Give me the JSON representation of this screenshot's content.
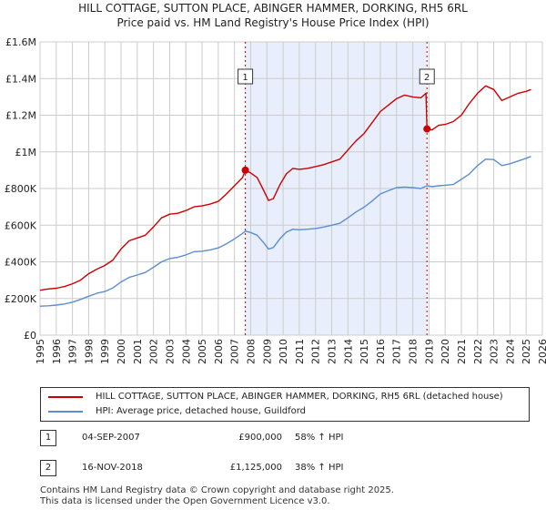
{
  "title_line1": "HILL COTTAGE, SUTTON PLACE, ABINGER HAMMER, DORKING, RH5 6RL",
  "title_line2": "Price paid vs. HM Land Registry's House Price Index (HPI)",
  "chart_data": {
    "type": "line",
    "x_range": [
      1995,
      2026
    ],
    "y_range": [
      0,
      1600000
    ],
    "y_ticks": [
      {
        "value": 0,
        "label": "£0"
      },
      {
        "value": 200000,
        "label": "£200K"
      },
      {
        "value": 400000,
        "label": "£400K"
      },
      {
        "value": 600000,
        "label": "£600K"
      },
      {
        "value": 800000,
        "label": "£800K"
      },
      {
        "value": 1000000,
        "label": "£1M"
      },
      {
        "value": 1200000,
        "label": "£1.2M"
      },
      {
        "value": 1400000,
        "label": "£1.4M"
      },
      {
        "value": 1600000,
        "label": "£1.6M"
      }
    ],
    "x_ticks": [
      "1995",
      "1996",
      "1997",
      "1998",
      "1999",
      "2000",
      "2001",
      "2002",
      "2003",
      "2004",
      "2005",
      "2006",
      "2007",
      "2008",
      "2009",
      "2010",
      "2011",
      "2012",
      "2013",
      "2014",
      "2015",
      "2016",
      "2017",
      "2018",
      "2019",
      "2020",
      "2021",
      "2022",
      "2023",
      "2024",
      "2025",
      "2026"
    ],
    "highlight_region": {
      "from": 2007.67,
      "to": 2018.88
    },
    "series": [
      {
        "name": "HILL COTTAGE, SUTTON PLACE, ABINGER HAMMER, DORKING, RH5 6RL (detached house)",
        "color": "#cc0000",
        "points": [
          [
            1995.0,
            245000
          ],
          [
            1995.5,
            252000
          ],
          [
            1996.0,
            256000
          ],
          [
            1996.5,
            265000
          ],
          [
            1997.0,
            280000
          ],
          [
            1997.5,
            300000
          ],
          [
            1998.0,
            335000
          ],
          [
            1998.5,
            360000
          ],
          [
            1999.0,
            380000
          ],
          [
            1999.5,
            410000
          ],
          [
            2000.0,
            470000
          ],
          [
            2000.5,
            515000
          ],
          [
            2001.0,
            530000
          ],
          [
            2001.5,
            545000
          ],
          [
            2002.0,
            590000
          ],
          [
            2002.5,
            640000
          ],
          [
            2003.0,
            660000
          ],
          [
            2003.5,
            665000
          ],
          [
            2004.0,
            680000
          ],
          [
            2004.5,
            700000
          ],
          [
            2005.0,
            705000
          ],
          [
            2005.5,
            715000
          ],
          [
            2006.0,
            730000
          ],
          [
            2006.5,
            770000
          ],
          [
            2007.0,
            815000
          ],
          [
            2007.5,
            860000
          ],
          [
            2007.67,
            900000
          ],
          [
            2008.0,
            885000
          ],
          [
            2008.4,
            860000
          ],
          [
            2008.8,
            790000
          ],
          [
            2009.1,
            735000
          ],
          [
            2009.4,
            745000
          ],
          [
            2009.8,
            820000
          ],
          [
            2010.2,
            880000
          ],
          [
            2010.6,
            910000
          ],
          [
            2011.0,
            905000
          ],
          [
            2011.5,
            910000
          ],
          [
            2012.0,
            920000
          ],
          [
            2012.5,
            930000
          ],
          [
            2013.0,
            945000
          ],
          [
            2013.5,
            960000
          ],
          [
            2014.0,
            1010000
          ],
          [
            2014.5,
            1060000
          ],
          [
            2015.0,
            1100000
          ],
          [
            2015.5,
            1160000
          ],
          [
            2016.0,
            1220000
          ],
          [
            2016.5,
            1255000
          ],
          [
            2017.0,
            1290000
          ],
          [
            2017.5,
            1310000
          ],
          [
            2018.0,
            1300000
          ],
          [
            2018.5,
            1295000
          ],
          [
            2018.82,
            1320000
          ],
          [
            2018.88,
            1125000
          ],
          [
            2019.2,
            1120000
          ],
          [
            2019.6,
            1145000
          ],
          [
            2020.0,
            1150000
          ],
          [
            2020.5,
            1165000
          ],
          [
            2021.0,
            1200000
          ],
          [
            2021.5,
            1265000
          ],
          [
            2022.0,
            1320000
          ],
          [
            2022.5,
            1360000
          ],
          [
            2023.0,
            1340000
          ],
          [
            2023.5,
            1280000
          ],
          [
            2024.0,
            1300000
          ],
          [
            2024.5,
            1320000
          ],
          [
            2025.0,
            1330000
          ],
          [
            2025.3,
            1340000
          ]
        ]
      },
      {
        "name": "HPI: Average price, detached house, Guildford",
        "color": "#5b8fcf",
        "points": [
          [
            1995.0,
            158000
          ],
          [
            1995.5,
            160000
          ],
          [
            1996.0,
            164000
          ],
          [
            1996.5,
            170000
          ],
          [
            1997.0,
            180000
          ],
          [
            1997.5,
            195000
          ],
          [
            1998.0,
            212000
          ],
          [
            1998.5,
            228000
          ],
          [
            1999.0,
            238000
          ],
          [
            1999.5,
            258000
          ],
          [
            2000.0,
            290000
          ],
          [
            2000.5,
            315000
          ],
          [
            2001.0,
            328000
          ],
          [
            2001.5,
            342000
          ],
          [
            2002.0,
            370000
          ],
          [
            2002.5,
            400000
          ],
          [
            2003.0,
            418000
          ],
          [
            2003.5,
            425000
          ],
          [
            2004.0,
            438000
          ],
          [
            2004.5,
            455000
          ],
          [
            2005.0,
            458000
          ],
          [
            2005.5,
            465000
          ],
          [
            2006.0,
            476000
          ],
          [
            2006.5,
            498000
          ],
          [
            2007.0,
            525000
          ],
          [
            2007.5,
            555000
          ],
          [
            2007.67,
            568000
          ],
          [
            2008.0,
            560000
          ],
          [
            2008.4,
            545000
          ],
          [
            2008.8,
            505000
          ],
          [
            2009.1,
            470000
          ],
          [
            2009.4,
            478000
          ],
          [
            2009.8,
            525000
          ],
          [
            2010.2,
            562000
          ],
          [
            2010.6,
            578000
          ],
          [
            2011.0,
            575000
          ],
          [
            2011.5,
            578000
          ],
          [
            2012.0,
            582000
          ],
          [
            2012.5,
            590000
          ],
          [
            2013.0,
            600000
          ],
          [
            2013.5,
            610000
          ],
          [
            2014.0,
            640000
          ],
          [
            2014.5,
            672000
          ],
          [
            2015.0,
            698000
          ],
          [
            2015.5,
            732000
          ],
          [
            2016.0,
            770000
          ],
          [
            2016.5,
            788000
          ],
          [
            2017.0,
            805000
          ],
          [
            2017.5,
            808000
          ],
          [
            2018.0,
            805000
          ],
          [
            2018.5,
            800000
          ],
          [
            2018.88,
            815000
          ],
          [
            2019.2,
            810000
          ],
          [
            2019.6,
            815000
          ],
          [
            2020.0,
            818000
          ],
          [
            2020.5,
            822000
          ],
          [
            2021.0,
            850000
          ],
          [
            2021.5,
            880000
          ],
          [
            2022.0,
            925000
          ],
          [
            2022.5,
            960000
          ],
          [
            2023.0,
            958000
          ],
          [
            2023.5,
            925000
          ],
          [
            2024.0,
            935000
          ],
          [
            2024.5,
            950000
          ],
          [
            2025.0,
            965000
          ],
          [
            2025.3,
            975000
          ]
        ]
      }
    ],
    "sales": [
      {
        "marker": "1",
        "year": 2007.67,
        "price": 900000
      },
      {
        "marker": "2",
        "year": 2018.88,
        "price": 1125000
      }
    ]
  },
  "legend": {
    "property_label": "HILL COTTAGE, SUTTON PLACE, ABINGER HAMMER, DORKING, RH5 6RL (detached house)",
    "hpi_label": "HPI: Average price, detached house, Guildford"
  },
  "transactions": [
    {
      "num": "1",
      "date": "04-SEP-2007",
      "price": "£900,000",
      "hpi": "58% ↑ HPI"
    },
    {
      "num": "2",
      "date": "16-NOV-2018",
      "price": "£1,125,000",
      "hpi": "38% ↑ HPI"
    }
  ],
  "footer": {
    "line1": "Contains HM Land Registry data © Crown copyright and database right 2025.",
    "line2": "This data is licensed under the Open Government Licence v3.0."
  },
  "colors": {
    "property": "#cc0000",
    "hpi": "#5b8fcf",
    "shade": "#e8eefb",
    "grid": "#cccccc"
  }
}
